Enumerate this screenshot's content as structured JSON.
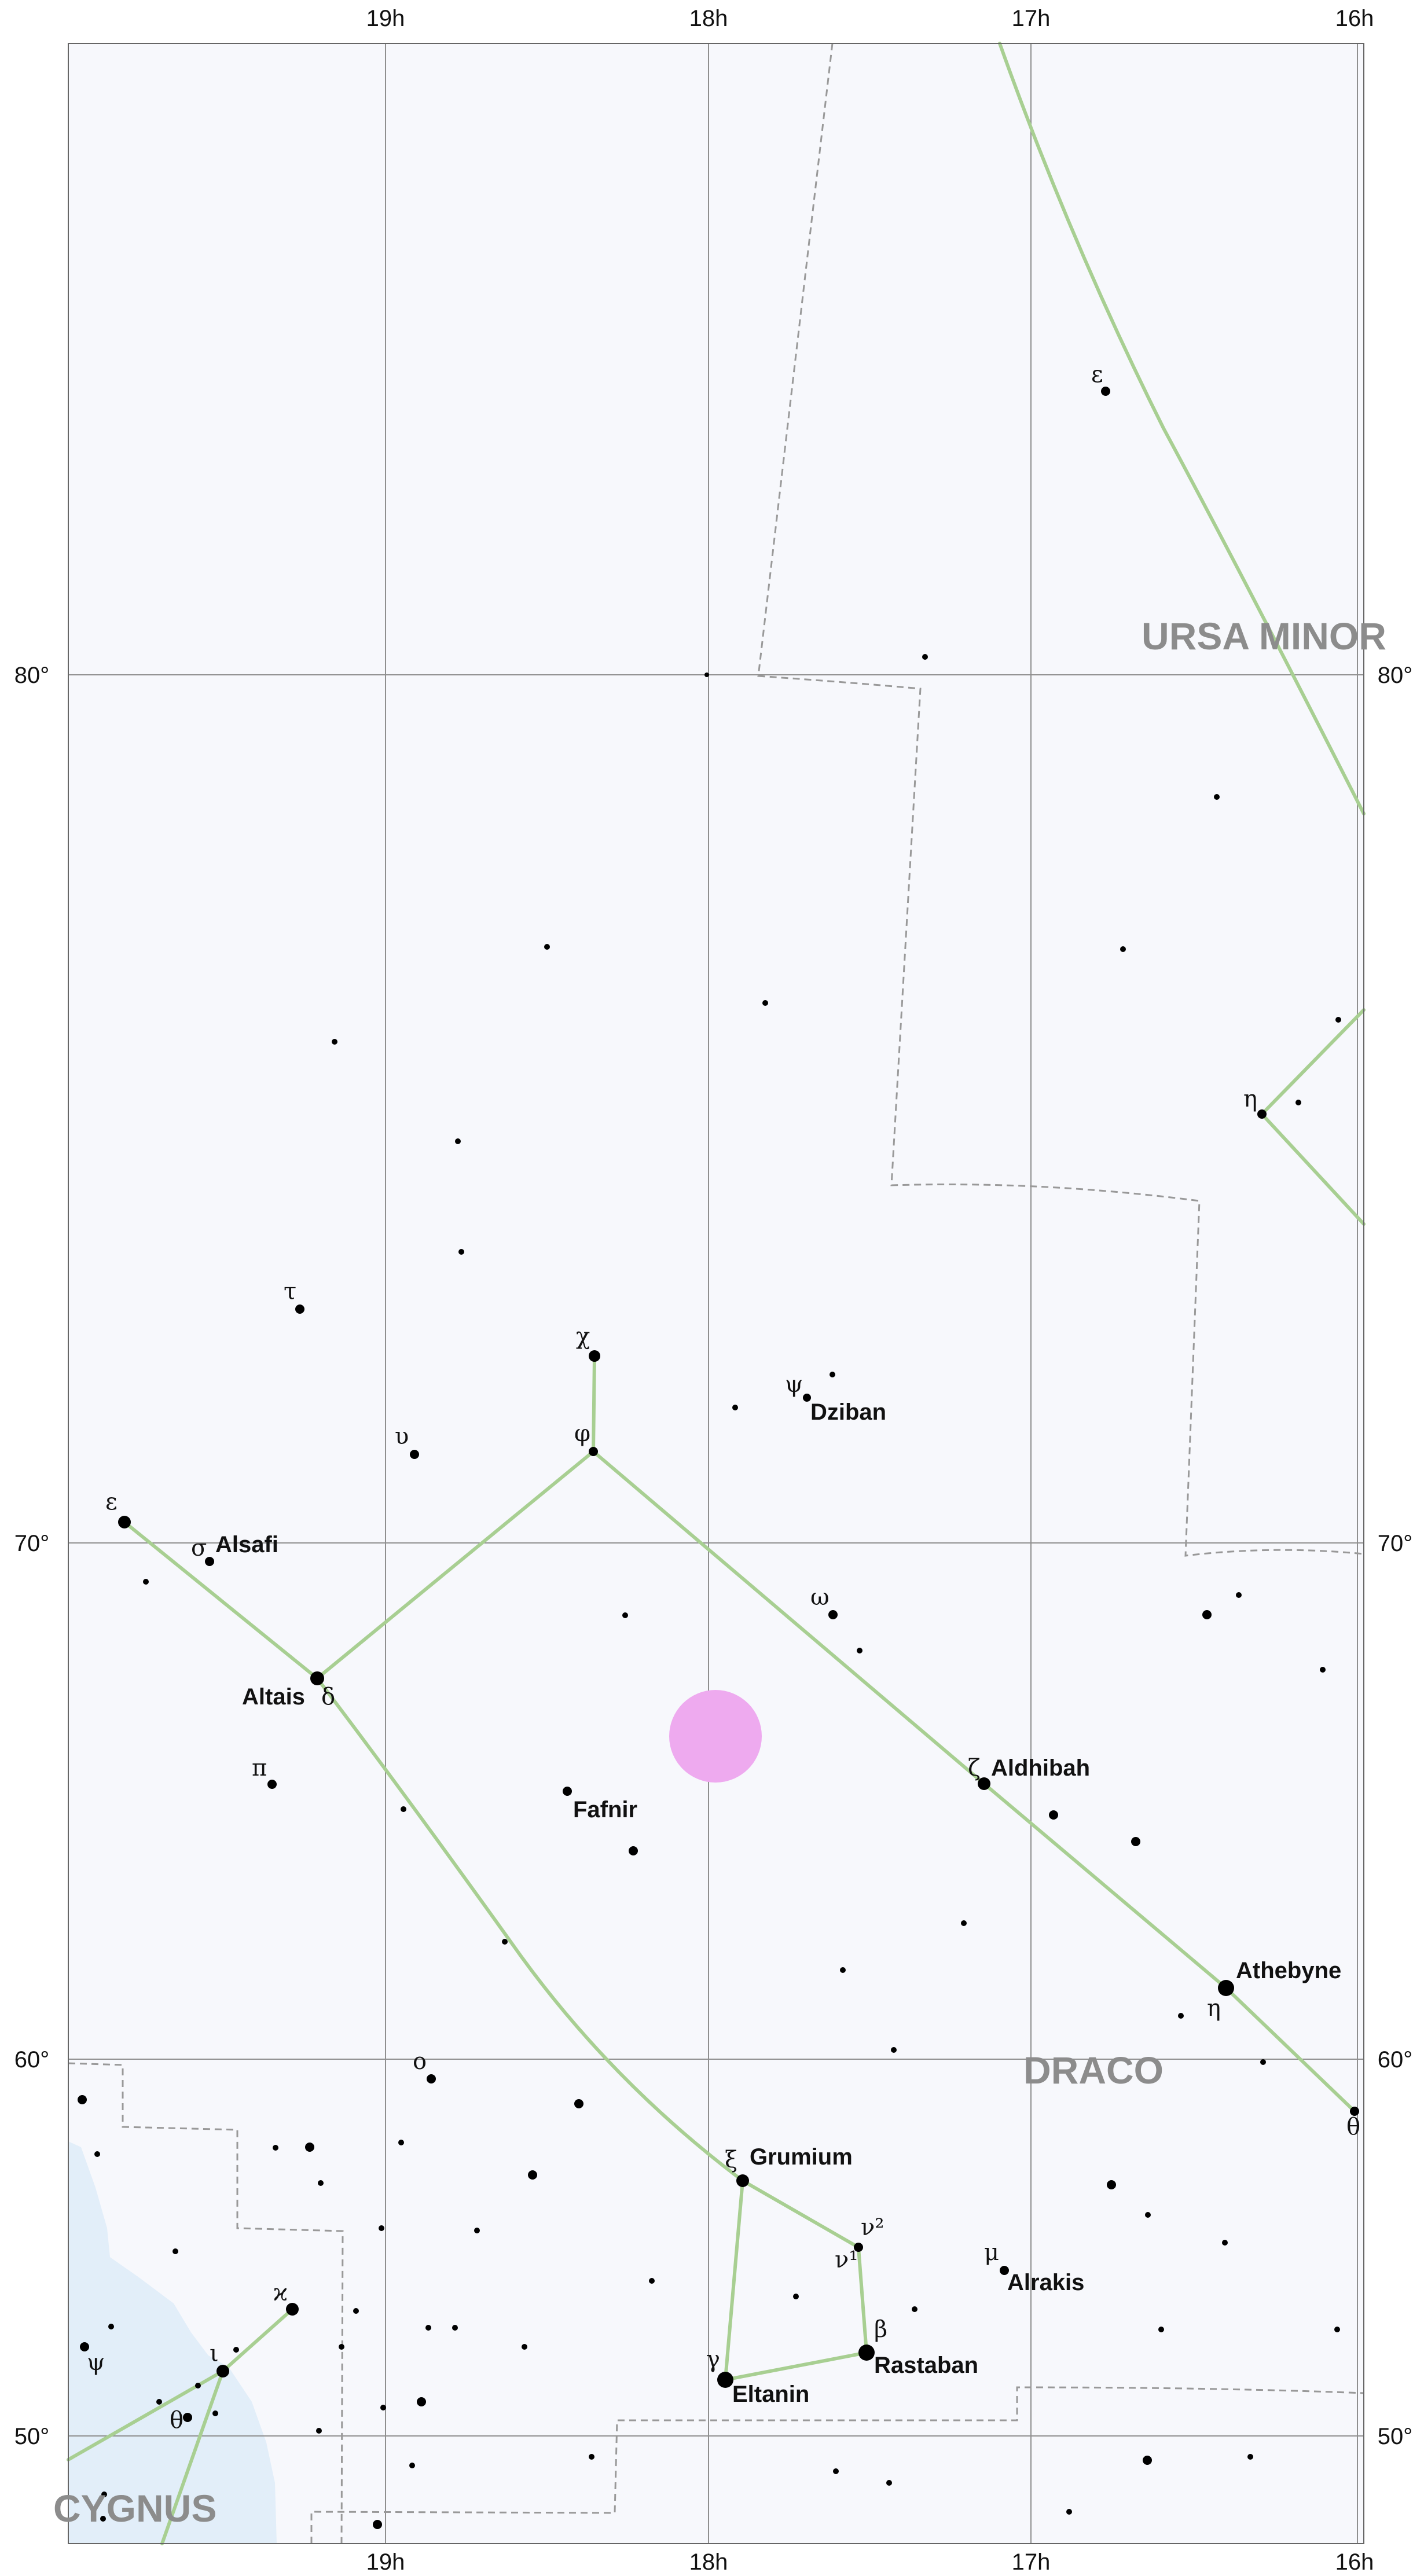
{
  "ra_labels": [
    "19h",
    "18h",
    "17h",
    "16h"
  ],
  "dec_labels": [
    "80°",
    "70°",
    "60°",
    "50°"
  ],
  "constellations": [
    "URSA MINOR",
    "DRACO",
    "CYGNUS"
  ],
  "named_stars": [
    {
      "greek": "ψ",
      "name": "Dziban"
    },
    {
      "greek": "σ",
      "name": "Alsafi"
    },
    {
      "greek": "δ",
      "name": "Altais"
    },
    {
      "greek": "",
      "name": "Fafnir"
    },
    {
      "greek": "ζ",
      "name": "Aldhibah"
    },
    {
      "greek": "η",
      "name": "Athebyne"
    },
    {
      "greek": "ξ",
      "name": "Grumium"
    },
    {
      "greek": "μ",
      "name": "Alrakis"
    },
    {
      "greek": "β",
      "name": "Rastaban"
    },
    {
      "greek": "γ",
      "name": "Eltanin"
    }
  ],
  "greek_labels": [
    "ε",
    "η",
    "τ",
    "χ",
    "υ",
    "φ",
    "ε",
    "ω",
    "π",
    "ο",
    "ν²",
    "ν¹",
    "θ",
    "ϰ",
    "ι",
    "ψ",
    "θ"
  ],
  "colors": {
    "background": "#f7f8fc",
    "constellation_lines": "#a8cf92",
    "milky_way": "#e2eef9",
    "highlight_marker": "#eeaaef",
    "grid": "#8f8f8f",
    "boundaries": "#999999"
  }
}
